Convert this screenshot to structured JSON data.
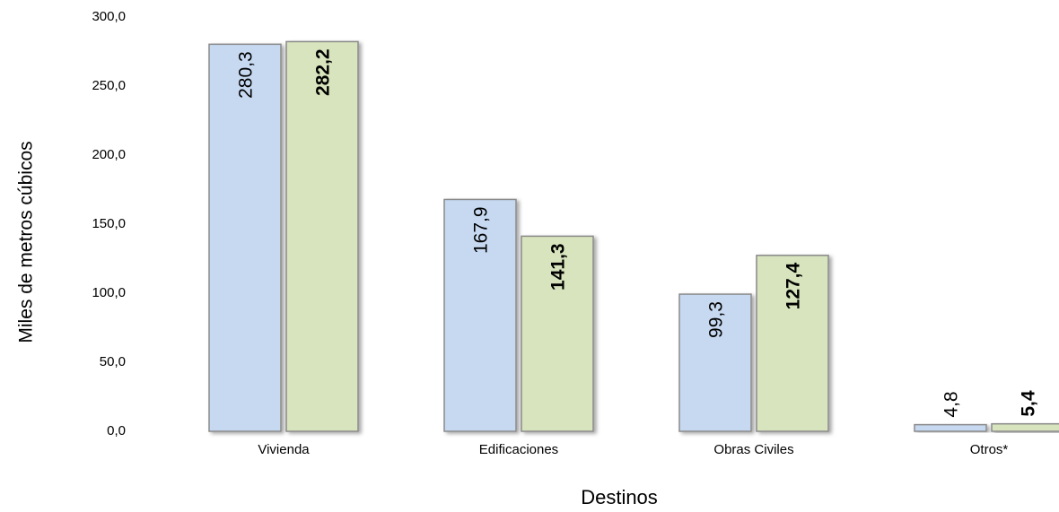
{
  "chart_data": {
    "type": "bar",
    "categories": [
      "Vivienda",
      "Edificaciones",
      "Obras Civiles",
      "Otros*"
    ],
    "series": [
      {
        "color": "#c6d9f1",
        "values": [
          280.3,
          167.9,
          99.3,
          4.8
        ],
        "value_labels": [
          "280,3",
          "167,9",
          "99,3",
          "4,8"
        ]
      },
      {
        "color": "#d7e4bd",
        "values": [
          282.2,
          141.3,
          127.4,
          5.4
        ],
        "value_labels": [
          "282,2",
          "141,3",
          "127,4",
          "5,4"
        ]
      }
    ],
    "ylabel": "Miles de metros cúbicos",
    "xlabel": "Destinos",
    "ylim": [
      0,
      300
    ],
    "yticks": [
      {
        "value": 0,
        "label": "0,0"
      },
      {
        "value": 50,
        "label": "50,0"
      },
      {
        "value": 100,
        "label": "100,0"
      },
      {
        "value": 150,
        "label": "150,0"
      },
      {
        "value": 200,
        "label": "200,0"
      },
      {
        "value": 250,
        "label": "250,0"
      },
      {
        "value": 300,
        "label": "300,0"
      }
    ],
    "grid": false
  }
}
